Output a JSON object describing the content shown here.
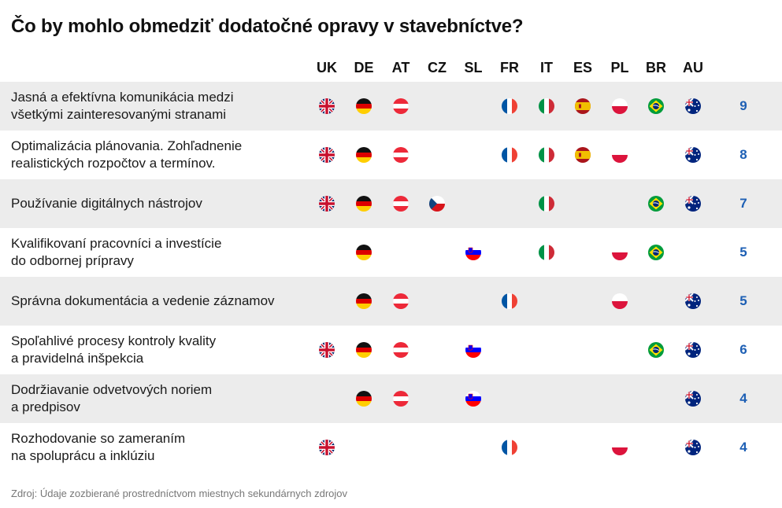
{
  "title": "Čo by mohlo obmedziť dodatočné opravy v stavebníctve?",
  "source": "Zdroj: Údaje zozbierané prostredníctvom miestnych sekundárnych zdrojov",
  "chart_data": {
    "type": "table",
    "columns": [
      "UK",
      "DE",
      "AT",
      "CZ",
      "SL",
      "FR",
      "IT",
      "ES",
      "PL",
      "BR",
      "AU"
    ],
    "rows": [
      {
        "label": "Jasná a efektívna komunikácia medzi\nvšetkými zainteresovanými stranami",
        "countries": [
          "UK",
          "DE",
          "AT",
          "FR",
          "IT",
          "ES",
          "PL",
          "BR",
          "AU"
        ],
        "count": 9
      },
      {
        "label": "Optimalizácia plánovania. Zohľadnenie\nrealistických rozpočtov a termínov.",
        "countries": [
          "UK",
          "DE",
          "AT",
          "FR",
          "IT",
          "ES",
          "PL",
          "AU"
        ],
        "count": 8
      },
      {
        "label": "Používanie digitálnych nástrojov",
        "countries": [
          "UK",
          "DE",
          "AT",
          "CZ",
          "IT",
          "BR",
          "AU"
        ],
        "count": 7
      },
      {
        "label": "Kvalifikovaní pracovníci a investície\ndo odbornej prípravy",
        "countries": [
          "DE",
          "SL",
          "IT",
          "PL",
          "BR"
        ],
        "count": 5
      },
      {
        "label": "Správna dokumentácia a vedenie záznamov",
        "countries": [
          "DE",
          "AT",
          "FR",
          "PL",
          "AU"
        ],
        "count": 5
      },
      {
        "label": "Spoľahlivé procesy kontroly kvality\na pravidelná inšpekcia",
        "countries": [
          "UK",
          "DE",
          "AT",
          "SL",
          "BR",
          "AU"
        ],
        "count": 6
      },
      {
        "label": "Dodržiavanie odvetvových noriem\na predpisov",
        "countries": [
          "DE",
          "AT",
          "SL",
          "AU"
        ],
        "count": 4
      },
      {
        "label": "Rozhodovanie so zameraním\nna spoluprácu a inklúziu",
        "countries": [
          "UK",
          "FR",
          "PL",
          "AU"
        ],
        "count": 4
      }
    ],
    "shaded_rows": [
      0,
      2,
      4,
      6
    ],
    "colors": {
      "count_text": "#1d5fb4",
      "row_shade": "#ececec"
    }
  }
}
